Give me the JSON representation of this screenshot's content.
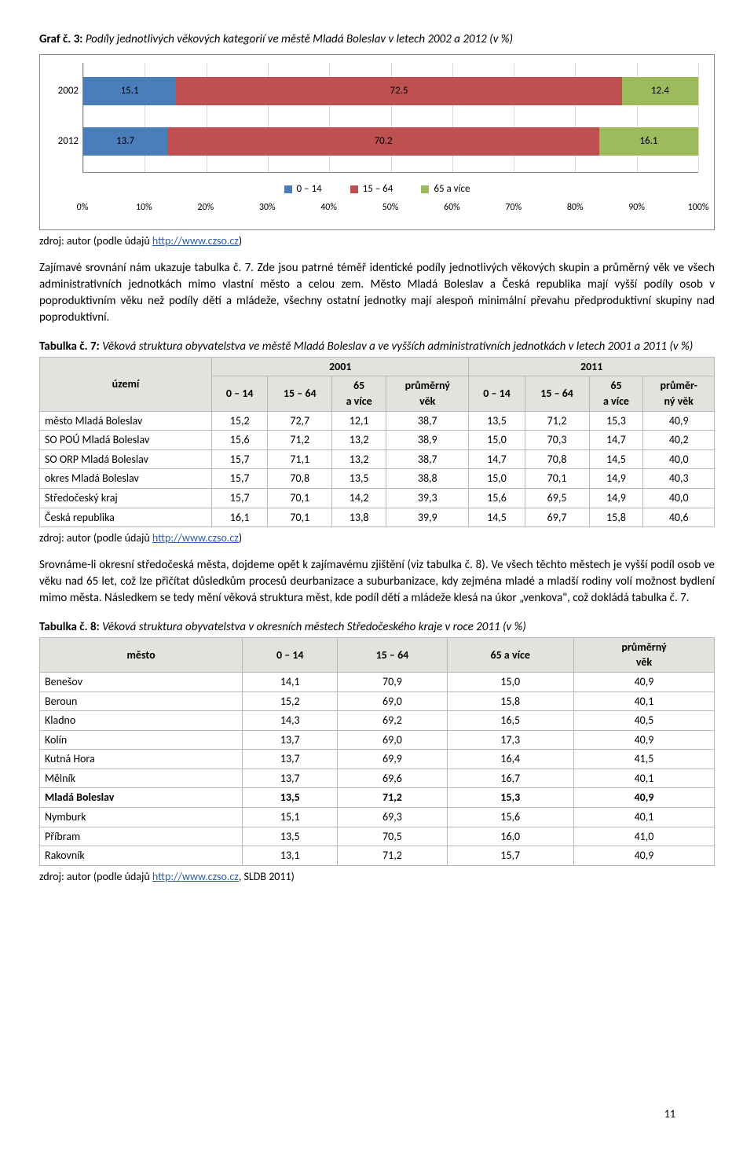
{
  "chart": {
    "caption_lead": "Graf č. 3:",
    "caption_rest": " Podíly jednotlivých věkových kategorií ve městě Mladá Boleslav v letech 2002 a 2012 (v %)",
    "type": "stacked-bar-horizontal",
    "x_ticks": [
      "0%",
      "10%",
      "20%",
      "30%",
      "40%",
      "50%",
      "60%",
      "70%",
      "80%",
      "90%",
      "100%"
    ],
    "series": [
      {
        "name": "0 – 14",
        "color": "#4a7ebb"
      },
      {
        "name": "15 – 64",
        "color": "#bf5050"
      },
      {
        "name": "65 a více",
        "color": "#9dbb5c"
      }
    ],
    "rows": [
      {
        "label": "2002",
        "values": [
          15.1,
          72.5,
          12.4
        ]
      },
      {
        "label": "2012",
        "values": [
          13.7,
          70.2,
          16.1
        ]
      }
    ],
    "grid_color": "#d6d6d6",
    "border_color": "#888888",
    "background_color": "#ffffff"
  },
  "source1_prefix": "zdroj: autor (podle údajů ",
  "source1_link": "http://www.czso.cz",
  "source1_suffix": ")",
  "para1": "Zajímavé srovnání nám ukazuje tabulka č. 7. Zde jsou patrné téměř identické podíly jednotlivých věkových skupin a průměrný věk ve všech administrativních jednotkách mimo vlastní město a celou zem. Město Mladá Boleslav a Česká republika mají vyšší podíly osob v poproduktivním věku než podíly dětí a mládeže, všechny ostatní jednotky mají alespoň minimální převahu předproduktivní skupiny nad poproduktivní.",
  "table7": {
    "caption_lead": "Tabulka č. 7:",
    "caption_rest": " Věková struktura obyvatelstva ve městě Mladá Boleslav a ve vyšších administrativních jednotkách v letech 2001 a 2011 (v %)",
    "header_top": [
      "území",
      "2001",
      "2011"
    ],
    "header_sub": [
      "0 – 14",
      "15 – 64",
      "65\na více",
      "průměrný\nvěk",
      "0 – 14",
      "15 – 64",
      "65\na více",
      "průměr-\nný věk"
    ],
    "rows": [
      [
        "město Mladá Boleslav",
        "15,2",
        "72,7",
        "12,1",
        "38,7",
        "13,5",
        "71,2",
        "15,3",
        "40,9"
      ],
      [
        "SO POÚ Mladá Boleslav",
        "15,6",
        "71,2",
        "13,2",
        "38,9",
        "15,0",
        "70,3",
        "14,7",
        "40,2"
      ],
      [
        "SO ORP Mladá Boleslav",
        "15,7",
        "71,1",
        "13,2",
        "38,7",
        "14,7",
        "70,8",
        "14,5",
        "40,0"
      ],
      [
        "okres Mladá Boleslav",
        "15,7",
        "70,8",
        "13,5",
        "38,8",
        "15,0",
        "70,1",
        "14,9",
        "40,3"
      ],
      [
        "Středočeský kraj",
        "15,7",
        "70,1",
        "14,2",
        "39,3",
        "15,6",
        "69,5",
        "14,9",
        "40,0"
      ],
      [
        "Česká republika",
        "16,1",
        "70,1",
        "13,8",
        "39,9",
        "14,5",
        "69,7",
        "15,8",
        "40,6"
      ]
    ]
  },
  "source2_prefix": "zdroj: autor (podle údajů ",
  "source2_link": "http://www.czso.cz",
  "source2_suffix": ")",
  "para2": "Srovnáme-li okresní středočeská města, dojdeme opět k zajímavému zjištění (viz tabulka č. 8). Ve všech těchto městech je vyšší podíl osob ve věku nad 65 let, což lze přičítat důsledkům procesů deurbanizace a suburbanizace, kdy zejména mladé a mladší rodiny volí možnost bydlení mimo města. Následkem se tedy mění věková struktura měst, kde podíl dětí a mládeže klesá na úkor „venkova\", což dokládá tabulka č. 7.",
  "table8": {
    "caption_lead": "Tabulka č. 8:",
    "caption_rest": "  Věková struktura obyvatelstva v okresních městech Středočeského kraje v roce 2011 (v %)",
    "header": [
      "město",
      "0 – 14",
      "15 – 64",
      "65 a více",
      "průměrný\nvěk"
    ],
    "rows": [
      [
        "Benešov",
        "14,1",
        "70,9",
        "15,0",
        "40,9"
      ],
      [
        "Beroun",
        "15,2",
        "69,0",
        "15,8",
        "40,1"
      ],
      [
        "Kladno",
        "14,3",
        "69,2",
        "16,5",
        "40,5"
      ],
      [
        "Kolín",
        "13,7",
        "69,0",
        "17,3",
        "40,9"
      ],
      [
        "Kutná Hora",
        "13,7",
        "69,9",
        "16,4",
        "41,5"
      ],
      [
        "Mělník",
        "13,7",
        "69,6",
        "16,7",
        "40,1"
      ],
      [
        "Mladá Boleslav",
        "13,5",
        "71,2",
        "15,3",
        "40,9"
      ],
      [
        "Nymburk",
        "15,1",
        "69,3",
        "15,6",
        "40,1"
      ],
      [
        "Příbram",
        "13,5",
        "70,5",
        "16,0",
        "41,0"
      ],
      [
        "Rakovník",
        "13,1",
        "71,2",
        "15,7",
        "40,9"
      ]
    ],
    "bold_row_index": 6
  },
  "source3_prefix": "zdroj: autor (podle údajů ",
  "source3_link": "http://www.czso.cz",
  "source3_suffix": ", SLDB 2011)",
  "page_number": "11"
}
